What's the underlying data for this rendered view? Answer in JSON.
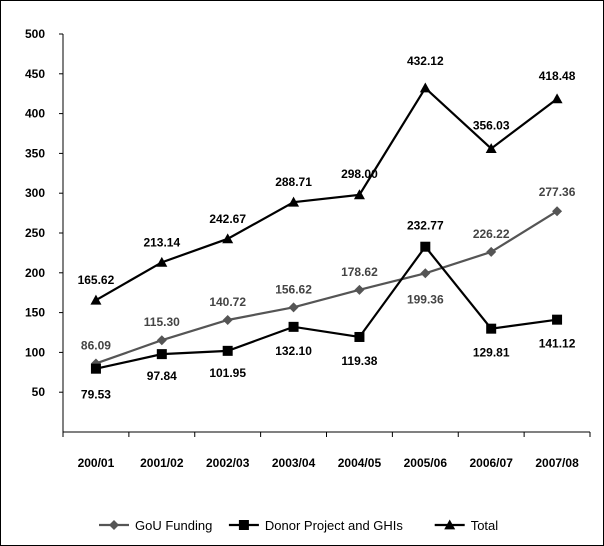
{
  "chart_data": {
    "type": "line",
    "title": "",
    "xlabel": "",
    "ylabel": "",
    "categories": [
      "200/01",
      "2001/02",
      "2002/03",
      "2003/04",
      "2004/05",
      "2005/06",
      "2006/07",
      "2007/08"
    ],
    "ylim": [
      0,
      500
    ],
    "yticks": [
      50,
      100,
      150,
      200,
      250,
      300,
      350,
      400,
      450,
      500
    ],
    "grid": false,
    "legend_position": "bottom",
    "series": [
      {
        "name": "GoU Funding",
        "marker": "diamond",
        "color": "#555555",
        "label_color": "#444444",
        "values": [
          86.09,
          115.3,
          140.72,
          156.62,
          178.62,
          199.36,
          226.22,
          277.36
        ],
        "labels": [
          "86.09",
          "115.30",
          "140.72",
          "156.62",
          "178.62",
          "199.36",
          "226.22",
          "277.36"
        ]
      },
      {
        "name": "Donor Project and GHIs",
        "marker": "square",
        "color": "#000000",
        "label_color": "#000000",
        "values": [
          79.53,
          97.84,
          101.95,
          132.1,
          119.38,
          232.77,
          129.81,
          141.12
        ],
        "labels": [
          "79.53",
          "97.84",
          "101.95",
          "132.10",
          "119.38",
          "232.77",
          "129.81",
          "141.12"
        ]
      },
      {
        "name": "Total",
        "marker": "triangle",
        "color": "#000000",
        "label_color": "#000000",
        "values": [
          165.62,
          213.14,
          242.67,
          288.71,
          298.0,
          432.12,
          356.03,
          418.48
        ],
        "labels": [
          "165.62",
          "213.14",
          "242.67",
          "288.71",
          "298.00",
          "432.12",
          "356.03",
          "418.48"
        ]
      }
    ]
  }
}
